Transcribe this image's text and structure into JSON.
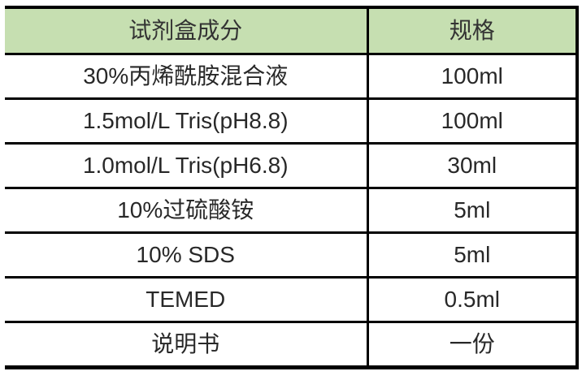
{
  "table": {
    "title": "reagent-kit-components-specification",
    "columns": [
      {
        "label": "试剂盒成分"
      },
      {
        "label": "规格"
      }
    ],
    "rows": [
      {
        "component": "30%丙烯酰胺混合液",
        "spec": "100ml"
      },
      {
        "component": "1.5mol/L Tris(pH8.8)",
        "spec": "100ml"
      },
      {
        "component": "1.0mol/L Tris(pH6.8)",
        "spec": "30ml"
      },
      {
        "component": "10%过硫酸铵",
        "spec": "5ml"
      },
      {
        "component": "10% SDS",
        "spec": "5ml"
      },
      {
        "component": "TEMED",
        "spec": "0.5ml"
      },
      {
        "component": "说明书",
        "spec": "一份"
      }
    ],
    "colors": {
      "header_bg": "#c6dfb1",
      "border": "#000000",
      "text": "#282828",
      "page_bg": "#ffffff"
    }
  },
  "chart_data": {
    "type": "table",
    "title": "",
    "columns": [
      "试剂盒成分",
      "规格"
    ],
    "cells": [
      [
        "30%丙烯酰胺混合液",
        "100ml"
      ],
      [
        "1.5mol/L Tris(pH8.8)",
        "100ml"
      ],
      [
        "1.0mol/L Tris(pH6.8)",
        "30ml"
      ],
      [
        "10%过硫酸铵",
        "5ml"
      ],
      [
        "10% SDS",
        "5ml"
      ],
      [
        "TEMED",
        "0.5ml"
      ],
      [
        "说明书",
        "一份"
      ]
    ]
  }
}
